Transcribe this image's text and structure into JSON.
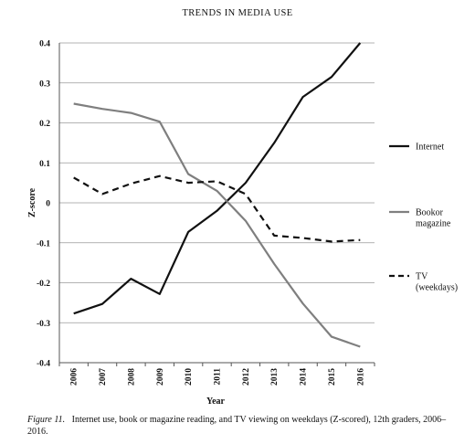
{
  "header": "TRENDS IN MEDIA USE",
  "caption": {
    "figure_label": "Figure 11.",
    "text": "Internet use, book or magazine reading, and TV viewing on weekdays (Z-scored), 12th graders, 2006–2016."
  },
  "chart_data": {
    "type": "line",
    "title": "",
    "xlabel": "Year",
    "ylabel": "Z-score",
    "x": [
      "2006",
      "2007",
      "2008",
      "2009",
      "2010",
      "2011",
      "2012",
      "2013",
      "2014",
      "2015",
      "2016"
    ],
    "ylim": [
      -0.4,
      0.4
    ],
    "yticks": [
      "0.4",
      "0.3",
      "0.2",
      "0.1",
      "0",
      "-0.1",
      "-0.2",
      "-0.3",
      "-0.4"
    ],
    "ytick_values": [
      0.4,
      0.3,
      0.2,
      0.1,
      0,
      -0.1,
      -0.2,
      -0.3,
      -0.4
    ],
    "grid": "horizontal",
    "legend_position": "right",
    "series": [
      {
        "name": "Internet",
        "color": "#111111",
        "style": "solid",
        "values": [
          -0.277,
          -0.253,
          -0.19,
          -0.228,
          -0.073,
          -0.02,
          0.05,
          0.15,
          0.265,
          0.315,
          0.4
        ]
      },
      {
        "name": "Bookor magazine",
        "legend_lines": [
          "Bookor",
          "magazine"
        ],
        "color": "#7f7f7f",
        "style": "solid",
        "values": [
          0.248,
          0.235,
          0.225,
          0.203,
          0.072,
          0.03,
          -0.045,
          -0.153,
          -0.252,
          -0.335,
          -0.36
        ]
      },
      {
        "name": "TV (weekdays)",
        "legend_lines": [
          "TV",
          "(weekdays)"
        ],
        "color": "#111111",
        "style": "dashed",
        "values": [
          0.063,
          0.022,
          0.048,
          0.067,
          0.05,
          0.054,
          0.022,
          -0.082,
          -0.088,
          -0.097,
          -0.093
        ]
      }
    ]
  }
}
